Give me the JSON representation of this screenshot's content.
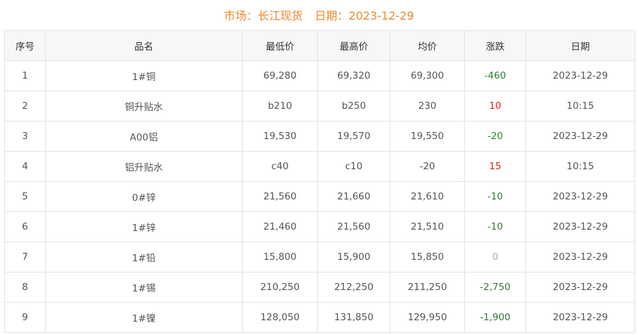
{
  "header": {
    "market_label": "市场：长江现货",
    "date_label": "日期：2023-12-29"
  },
  "colors": {
    "title": "#f0862a",
    "down": "#2f7d2f",
    "up": "#e0201c",
    "flat": "#aaaaaa"
  },
  "columns": [
    "序号",
    "品名",
    "最低价",
    "最高价",
    "均价",
    "涨跌",
    "日期"
  ],
  "rows": [
    {
      "no": "1",
      "name": "1#铜",
      "low": "69,280",
      "high": "69,320",
      "avg": "69,300",
      "change": "-460",
      "trend": "down",
      "date": "2023-12-29"
    },
    {
      "no": "2",
      "name": "铜升贴水",
      "low": "b210",
      "high": "b250",
      "avg": "230",
      "change": "10",
      "trend": "up",
      "date": "10:15"
    },
    {
      "no": "3",
      "name": "A00铝",
      "low": "19,530",
      "high": "19,570",
      "avg": "19,550",
      "change": "-20",
      "trend": "down",
      "date": "2023-12-29"
    },
    {
      "no": "4",
      "name": "铝升贴水",
      "low": "c40",
      "high": "c10",
      "avg": "-20",
      "change": "15",
      "trend": "up",
      "date": "10:15"
    },
    {
      "no": "5",
      "name": "0#锌",
      "low": "21,560",
      "high": "21,660",
      "avg": "21,610",
      "change": "-10",
      "trend": "down",
      "date": "2023-12-29"
    },
    {
      "no": "6",
      "name": "1#锌",
      "low": "21,460",
      "high": "21,560",
      "avg": "21,510",
      "change": "-10",
      "trend": "down",
      "date": "2023-12-29"
    },
    {
      "no": "7",
      "name": "1#铅",
      "low": "15,800",
      "high": "15,900",
      "avg": "15,850",
      "change": "0",
      "trend": "flat",
      "date": "2023-12-29"
    },
    {
      "no": "8",
      "name": "1#锡",
      "low": "210,250",
      "high": "212,250",
      "avg": "211,250",
      "change": "-2,750",
      "trend": "down",
      "date": "2023-12-29"
    },
    {
      "no": "9",
      "name": "1#镍",
      "low": "128,050",
      "high": "131,850",
      "avg": "129,950",
      "change": "-1,900",
      "trend": "down",
      "date": "2023-12-29"
    }
  ]
}
